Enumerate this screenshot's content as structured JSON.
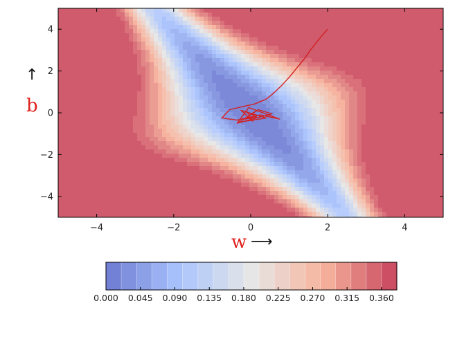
{
  "chart_data": {
    "type": "contour",
    "title": "",
    "xlabel": "w",
    "ylabel": "b",
    "x_arrow": "⟶",
    "y_arrow": "↑",
    "xlim": [
      -5,
      5
    ],
    "ylim": [
      -5,
      5
    ],
    "x_ticks": [
      -4,
      -2,
      0,
      2,
      4
    ],
    "x_tick_labels": [
      "−4",
      "−2",
      "0",
      "2",
      "4"
    ],
    "y_ticks": [
      4,
      2,
      0,
      -2,
      -4
    ],
    "y_tick_labels": [
      "4",
      "2",
      "0",
      "−2",
      "−4"
    ],
    "colorbar": {
      "orientation": "horizontal",
      "colormap": "coolwarm",
      "range": [
        0.0,
        0.38
      ],
      "ticks": [
        0.0,
        0.045,
        0.09,
        0.135,
        0.18,
        0.225,
        0.27,
        0.315,
        0.36
      ],
      "tick_labels": [
        "0.000",
        "0.045",
        "0.090",
        "0.135",
        "0.180",
        "0.225",
        "0.270",
        "0.315",
        "0.360"
      ]
    },
    "trajectory": {
      "color": "#d42020",
      "points": [
        [
          2.0,
          4.0
        ],
        [
          1.85,
          3.7
        ],
        [
          1.7,
          3.35
        ],
        [
          1.55,
          3.0
        ],
        [
          1.4,
          2.6
        ],
        [
          1.2,
          2.15
        ],
        [
          1.0,
          1.7
        ],
        [
          0.8,
          1.3
        ],
        [
          0.6,
          0.95
        ],
        [
          0.4,
          0.65
        ],
        [
          0.1,
          0.42
        ],
        [
          -0.2,
          0.3
        ],
        [
          -0.55,
          0.15
        ],
        [
          -0.75,
          -0.25
        ],
        [
          -0.35,
          -0.35
        ],
        [
          0.25,
          -0.1
        ],
        [
          0.75,
          -0.3
        ],
        [
          -0.05,
          0.25
        ],
        [
          -0.35,
          -0.5
        ],
        [
          0.55,
          -0.05
        ],
        [
          0.2,
          0.15
        ],
        [
          -0.3,
          -0.45
        ],
        [
          0.4,
          -0.25
        ],
        [
          -0.25,
          0.12
        ],
        [
          0.05,
          -0.4
        ],
        [
          -0.1,
          0.05
        ],
        [
          0.15,
          -0.2
        ],
        [
          -0.15,
          -0.3
        ],
        [
          0.1,
          0.05
        ],
        [
          -0.05,
          -0.15
        ]
      ]
    }
  }
}
